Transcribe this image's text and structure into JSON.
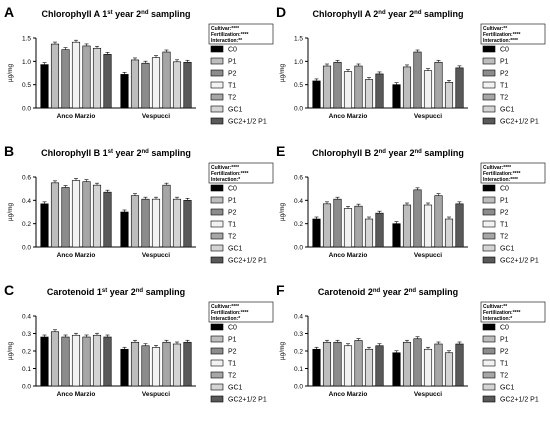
{
  "legend_labels": [
    "C0",
    "P1",
    "P2",
    "T1",
    "T2",
    "GC1",
    "GC2+1/2 P1"
  ],
  "bar_fills": [
    "#000000",
    "#bdbdbd",
    "#8c8c8c",
    "#f2f2f2",
    "#a6a6a6",
    "#d4d4d4",
    "#595959"
  ],
  "chart_data": [
    {
      "letter": "A",
      "type": "bar",
      "title_prefix": "Chlorophyll A 1",
      "title_sup1": "st",
      "title_mid": " year 2",
      "title_sup2": "nd",
      "title_suffix": " sampling",
      "ylabel": "µg/mg",
      "ylim": [
        0,
        1.5
      ],
      "yticks": [
        "0.0",
        "0.5",
        "1.0",
        "1.5"
      ],
      "categories": [
        "Anco Marzio",
        "Vespucci"
      ],
      "series": [
        {
          "name": "C0",
          "values": [
            0.93,
            0.72
          ]
        },
        {
          "name": "P1",
          "values": [
            1.37,
            1.03
          ]
        },
        {
          "name": "P2",
          "values": [
            1.25,
            0.96
          ]
        },
        {
          "name": "T1",
          "values": [
            1.41,
            1.08
          ]
        },
        {
          "name": "T2",
          "values": [
            1.33,
            1.2
          ]
        },
        {
          "name": "GC1",
          "values": [
            1.28,
            0.99
          ]
        },
        {
          "name": "GC2+1/2 P1",
          "values": [
            1.15,
            0.98
          ]
        }
      ],
      "stats": [
        "Cultivar:****",
        "Fertilization:****",
        "Interaction:**"
      ]
    },
    {
      "letter": "B",
      "type": "bar",
      "title_prefix": "Chlorophyll B 1",
      "title_sup1": "st",
      "title_mid": " year 2",
      "title_sup2": "nd",
      "title_suffix": " sampling",
      "ylabel": "µg/mg",
      "ylim": [
        0,
        0.6
      ],
      "yticks": [
        "0.0",
        "0.2",
        "0.4",
        "0.6"
      ],
      "categories": [
        "Anco Marzio",
        "Vespucci"
      ],
      "series": [
        {
          "name": "C0",
          "values": [
            0.37,
            0.3
          ]
        },
        {
          "name": "P1",
          "values": [
            0.55,
            0.44
          ]
        },
        {
          "name": "P2",
          "values": [
            0.51,
            0.41
          ]
        },
        {
          "name": "T1",
          "values": [
            0.57,
            0.41
          ]
        },
        {
          "name": "T2",
          "values": [
            0.56,
            0.53
          ]
        },
        {
          "name": "GC1",
          "values": [
            0.53,
            0.41
          ]
        },
        {
          "name": "GC2+1/2 P1",
          "values": [
            0.47,
            0.4
          ]
        }
      ],
      "stats": [
        "Cultivar:****",
        "Fertilization:****",
        "Interaction:*"
      ]
    },
    {
      "letter": "C",
      "type": "bar",
      "title_prefix": "Carotenoid 1",
      "title_sup1": "st",
      "title_mid": " year 2",
      "title_sup2": "nd",
      "title_suffix": " sampling",
      "ylabel": "µg/mg",
      "ylim": [
        0,
        0.4
      ],
      "yticks": [
        "0.0",
        "0.1",
        "0.2",
        "0.3",
        "0.4"
      ],
      "categories": [
        "Anco Marzio",
        "Vespucci"
      ],
      "series": [
        {
          "name": "C0",
          "values": [
            0.28,
            0.21
          ]
        },
        {
          "name": "P1",
          "values": [
            0.31,
            0.25
          ]
        },
        {
          "name": "P2",
          "values": [
            0.28,
            0.23
          ]
        },
        {
          "name": "T1",
          "values": [
            0.29,
            0.22
          ]
        },
        {
          "name": "T2",
          "values": [
            0.28,
            0.25
          ]
        },
        {
          "name": "GC1",
          "values": [
            0.29,
            0.24
          ]
        },
        {
          "name": "GC2+1/2 P1",
          "values": [
            0.28,
            0.25
          ]
        }
      ],
      "stats": [
        "Cultivar:****",
        "Fertilization:****",
        "Interaction:*"
      ]
    },
    {
      "letter": "D",
      "type": "bar",
      "title_prefix": "Chlorophyll A 2",
      "title_sup1": "nd",
      "title_mid": " year 2",
      "title_sup2": "nd",
      "title_suffix": " sampling",
      "ylabel": "µg/mg",
      "ylim": [
        0,
        1.5
      ],
      "yticks": [
        "0.0",
        "0.5",
        "1.0",
        "1.5"
      ],
      "categories": [
        "Anco Marzio",
        "Vespucci"
      ],
      "series": [
        {
          "name": "C0",
          "values": [
            0.58,
            0.5
          ]
        },
        {
          "name": "P1",
          "values": [
            0.9,
            0.88
          ]
        },
        {
          "name": "P2",
          "values": [
            0.98,
            1.2
          ]
        },
        {
          "name": "T1",
          "values": [
            0.78,
            0.8
          ]
        },
        {
          "name": "T2",
          "values": [
            0.9,
            0.98
          ]
        },
        {
          "name": "GC1",
          "values": [
            0.61,
            0.55
          ]
        },
        {
          "name": "GC2+1/2 P1",
          "values": [
            0.73,
            0.86
          ]
        }
      ],
      "stats": [
        "Cultivar:**",
        "Fertilization:****",
        "Interaction:****"
      ]
    },
    {
      "letter": "E",
      "type": "bar",
      "title_prefix": "Chlorophyll B 2",
      "title_sup1": "nd",
      "title_mid": " year 2",
      "title_sup2": "nd",
      "title_suffix": " sampling",
      "ylabel": "µg/mg",
      "ylim": [
        0,
        0.6
      ],
      "yticks": [
        "0.0",
        "0.2",
        "0.4",
        "0.6"
      ],
      "categories": [
        "Anco Marzio",
        "Vespucci"
      ],
      "series": [
        {
          "name": "C0",
          "values": [
            0.24,
            0.2
          ]
        },
        {
          "name": "P1",
          "values": [
            0.37,
            0.36
          ]
        },
        {
          "name": "P2",
          "values": [
            0.41,
            0.49
          ]
        },
        {
          "name": "T1",
          "values": [
            0.33,
            0.36
          ]
        },
        {
          "name": "T2",
          "values": [
            0.35,
            0.44
          ]
        },
        {
          "name": "GC1",
          "values": [
            0.24,
            0.24
          ]
        },
        {
          "name": "GC2+1/2 P1",
          "values": [
            0.29,
            0.37
          ]
        }
      ],
      "stats": [
        "Cultivar:****",
        "Fertilization:****",
        "Interaction:****"
      ]
    },
    {
      "letter": "F",
      "type": "bar",
      "title_prefix": "Carotenoid 2",
      "title_sup1": "nd",
      "title_mid": " year 2",
      "title_sup2": "nd",
      "title_suffix": " sampling",
      "ylabel": "µg/mg",
      "ylim": [
        0,
        0.4
      ],
      "yticks": [
        "0.0",
        "0.1",
        "0.2",
        "0.3",
        "0.4"
      ],
      "categories": [
        "Anco Marzio",
        "Vespucci"
      ],
      "series": [
        {
          "name": "C0",
          "values": [
            0.21,
            0.19
          ]
        },
        {
          "name": "P1",
          "values": [
            0.25,
            0.25
          ]
        },
        {
          "name": "P2",
          "values": [
            0.25,
            0.27
          ]
        },
        {
          "name": "T1",
          "values": [
            0.23,
            0.21
          ]
        },
        {
          "name": "T2",
          "values": [
            0.26,
            0.24
          ]
        },
        {
          "name": "GC1",
          "values": [
            0.21,
            0.19
          ]
        },
        {
          "name": "GC2+1/2 P1",
          "values": [
            0.23,
            0.24
          ]
        }
      ],
      "stats": [
        "Cultivar:**",
        "Fertilization:****",
        "Interaction:*"
      ]
    }
  ]
}
